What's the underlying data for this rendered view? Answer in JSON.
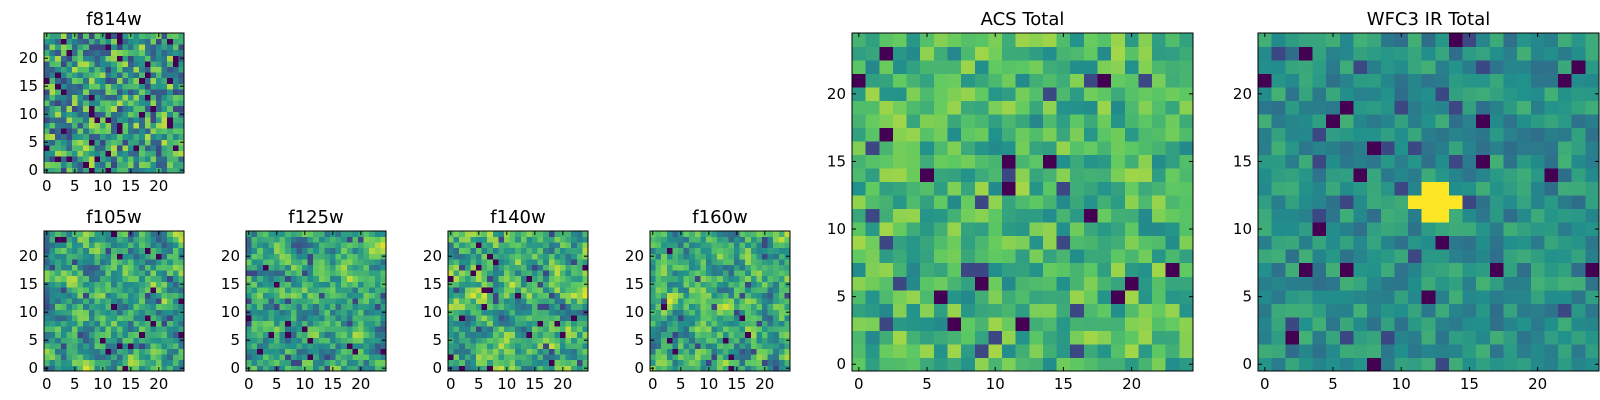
{
  "figure": {
    "kind": "image-grid"
  },
  "colormap": {
    "name": "viridis",
    "stops": [
      "#440154",
      "#3b528b",
      "#21918c",
      "#5ec962",
      "#fde725"
    ]
  },
  "chart_data": [
    {
      "id": "f814w",
      "type": "heatmap",
      "title": "f814w",
      "size": 25,
      "xlim": [
        -0.5,
        24.5
      ],
      "ylim": [
        -0.5,
        24.5
      ],
      "xticks": [
        "0",
        "5",
        "10",
        "15",
        "20"
      ],
      "yticks": [
        "0",
        "5",
        "10",
        "15",
        "20"
      ],
      "seed": 11,
      "smooth": 0,
      "dark_prob": 0.06,
      "bias": 0.58,
      "spread": 0.32
    },
    {
      "id": "f105w",
      "type": "heatmap",
      "title": "f105w",
      "size": 25,
      "xlim": [
        -0.5,
        24.5
      ],
      "ylim": [
        -0.5,
        24.5
      ],
      "xticks": [
        "0",
        "5",
        "10",
        "15",
        "20"
      ],
      "yticks": [
        "0",
        "5",
        "10",
        "15",
        "20"
      ],
      "seed": 23,
      "smooth": 1,
      "dark_prob": 0.03,
      "bias": 0.6,
      "spread": 0.35
    },
    {
      "id": "f125w",
      "type": "heatmap",
      "title": "f125w",
      "size": 25,
      "xlim": [
        -0.5,
        24.5
      ],
      "ylim": [
        -0.5,
        24.5
      ],
      "xticks": [
        "0",
        "5",
        "10",
        "15",
        "20"
      ],
      "yticks": [
        "0",
        "5",
        "10",
        "15",
        "20"
      ],
      "seed": 37,
      "smooth": 1,
      "dark_prob": 0.03,
      "bias": 0.6,
      "spread": 0.35
    },
    {
      "id": "f140w",
      "type": "heatmap",
      "title": "f140w",
      "size": 25,
      "xlim": [
        -0.5,
        24.5
      ],
      "ylim": [
        -0.5,
        24.5
      ],
      "xticks": [
        "0",
        "5",
        "10",
        "15",
        "20"
      ],
      "yticks": [
        "0",
        "5",
        "10",
        "15",
        "20"
      ],
      "seed": 51,
      "smooth": 1,
      "dark_prob": 0.03,
      "bias": 0.6,
      "spread": 0.35
    },
    {
      "id": "f160w",
      "type": "heatmap",
      "title": "f160w",
      "size": 25,
      "xlim": [
        -0.5,
        24.5
      ],
      "ylim": [
        -0.5,
        24.5
      ],
      "xticks": [
        "0",
        "5",
        "10",
        "15",
        "20"
      ],
      "yticks": [
        "0",
        "5",
        "10",
        "15",
        "20"
      ],
      "seed": 67,
      "smooth": 1,
      "dark_prob": 0.03,
      "bias": 0.6,
      "spread": 0.35
    },
    {
      "id": "acs-total",
      "type": "heatmap",
      "title": "ACS Total",
      "size": 25,
      "xlim": [
        -0.5,
        24.5
      ],
      "ylim": [
        -0.5,
        24.5
      ],
      "xticks": [
        "0",
        "5",
        "10",
        "15",
        "20"
      ],
      "yticks": [
        "0",
        "5",
        "10",
        "15",
        "20"
      ],
      "seed": 83,
      "smooth": 0,
      "dark_prob": 0.025,
      "bias": 0.66,
      "spread": 0.2
    },
    {
      "id": "wfc3-ir-total",
      "type": "heatmap",
      "title": "WFC3 IR Total",
      "size": 25,
      "xlim": [
        -0.5,
        24.5
      ],
      "ylim": [
        -0.5,
        24.5
      ],
      "xticks": [
        "0",
        "5",
        "10",
        "15",
        "20"
      ],
      "yticks": [
        "0",
        "5",
        "10",
        "15",
        "20"
      ],
      "seed": 97,
      "smooth": 0,
      "dark_prob": 0.03,
      "bias": 0.5,
      "spread": 0.14,
      "bright_source": {
        "center": [
          12.5,
          12
        ],
        "radius": 1.6
      }
    }
  ]
}
